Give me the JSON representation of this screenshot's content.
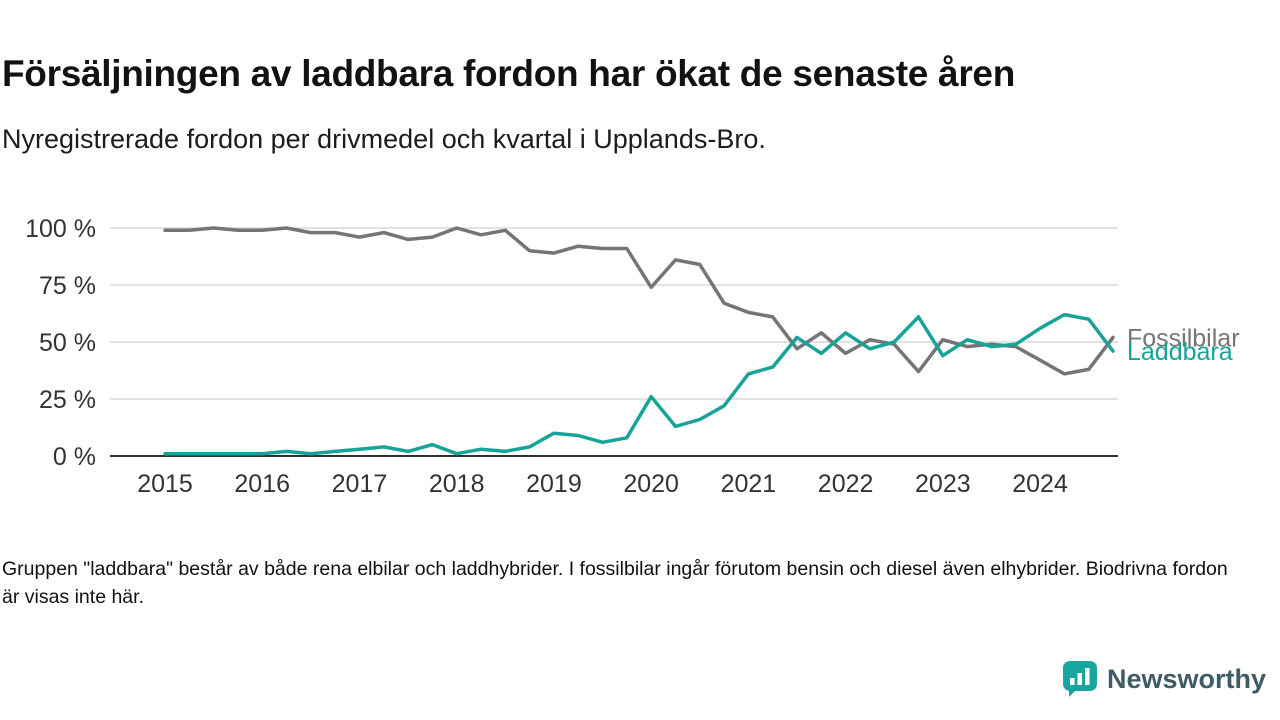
{
  "header": {
    "title": "Försäljningen av laddbara fordon har ökat de senaste åren",
    "subtitle": "Nyregistrerade fordon per drivmedel och kvartal i Upplands-Bro."
  },
  "footnote": {
    "text": "Gruppen \"laddbara\" består av både rena elbilar och laddhybrider. I fossilbilar ingår förutom bensin och diesel även elhybrider. Biodrivna fordon är visas inte här."
  },
  "branding": {
    "logo_text": "Newsworthy",
    "logo_icon": "bar-chart-speech-bubble-icon",
    "logo_color": "#18a59e",
    "text_color": "#3f5b66"
  },
  "chart_data": {
    "type": "line",
    "title": "",
    "xlabel": "",
    "ylabel": "",
    "unit": "%",
    "xlim": [
      2015,
      2024.75
    ],
    "ylim": [
      0,
      100
    ],
    "grid": "horizontal",
    "legend_position": "right-of-line-end",
    "colors": {
      "grid": "#d8d8d8",
      "axis": "#2f2f2f",
      "tick_text": "#333333"
    },
    "x": [
      2015,
      2015.25,
      2015.5,
      2015.75,
      2016,
      2016.25,
      2016.5,
      2016.75,
      2017,
      2017.25,
      2017.5,
      2017.75,
      2018,
      2018.25,
      2018.5,
      2018.75,
      2019,
      2019.25,
      2019.5,
      2019.75,
      2020,
      2020.25,
      2020.5,
      2020.75,
      2021,
      2021.25,
      2021.5,
      2021.75,
      2022,
      2022.25,
      2022.5,
      2022.75,
      2023,
      2023.25,
      2023.5,
      2023.75,
      2024,
      2024.25,
      2024.5,
      2024.75
    ],
    "series": [
      {
        "name": "Fossilbilar",
        "label": "Fossilbilar",
        "color": "#757575",
        "values": [
          99,
          99,
          100,
          99,
          99,
          100,
          98,
          98,
          96,
          98,
          95,
          96,
          100,
          97,
          99,
          90,
          89,
          92,
          91,
          91,
          74,
          86,
          84,
          67,
          63,
          61,
          47,
          54,
          45,
          51,
          49,
          37,
          51,
          48,
          49,
          48,
          42,
          36,
          38,
          52
        ]
      },
      {
        "name": "Laddbara",
        "label": "Laddbara",
        "color": "#17a398",
        "values": [
          1,
          1,
          1,
          1,
          1,
          2,
          1,
          2,
          3,
          4,
          2,
          5,
          1,
          3,
          2,
          4,
          10,
          9,
          6,
          8,
          26,
          13,
          16,
          22,
          36,
          39,
          52,
          45,
          54,
          47,
          50,
          61,
          44,
          51,
          48,
          49,
          56,
          62,
          60,
          46
        ]
      }
    ],
    "yticks": [
      {
        "value": 0,
        "label": "0 %"
      },
      {
        "value": 25,
        "label": "25 %"
      },
      {
        "value": 50,
        "label": "50 %"
      },
      {
        "value": 75,
        "label": "75 %"
      },
      {
        "value": 100,
        "label": "100 %"
      }
    ],
    "xticks": [
      {
        "value": 2015,
        "label": "2015"
      },
      {
        "value": 2016,
        "label": "2016"
      },
      {
        "value": 2017,
        "label": "2017"
      },
      {
        "value": 2018,
        "label": "2018"
      },
      {
        "value": 2019,
        "label": "2019"
      },
      {
        "value": 2020,
        "label": "2020"
      },
      {
        "value": 2021,
        "label": "2021"
      },
      {
        "value": 2022,
        "label": "2022"
      },
      {
        "value": 2023,
        "label": "2023"
      },
      {
        "value": 2024,
        "label": "2024"
      }
    ]
  }
}
